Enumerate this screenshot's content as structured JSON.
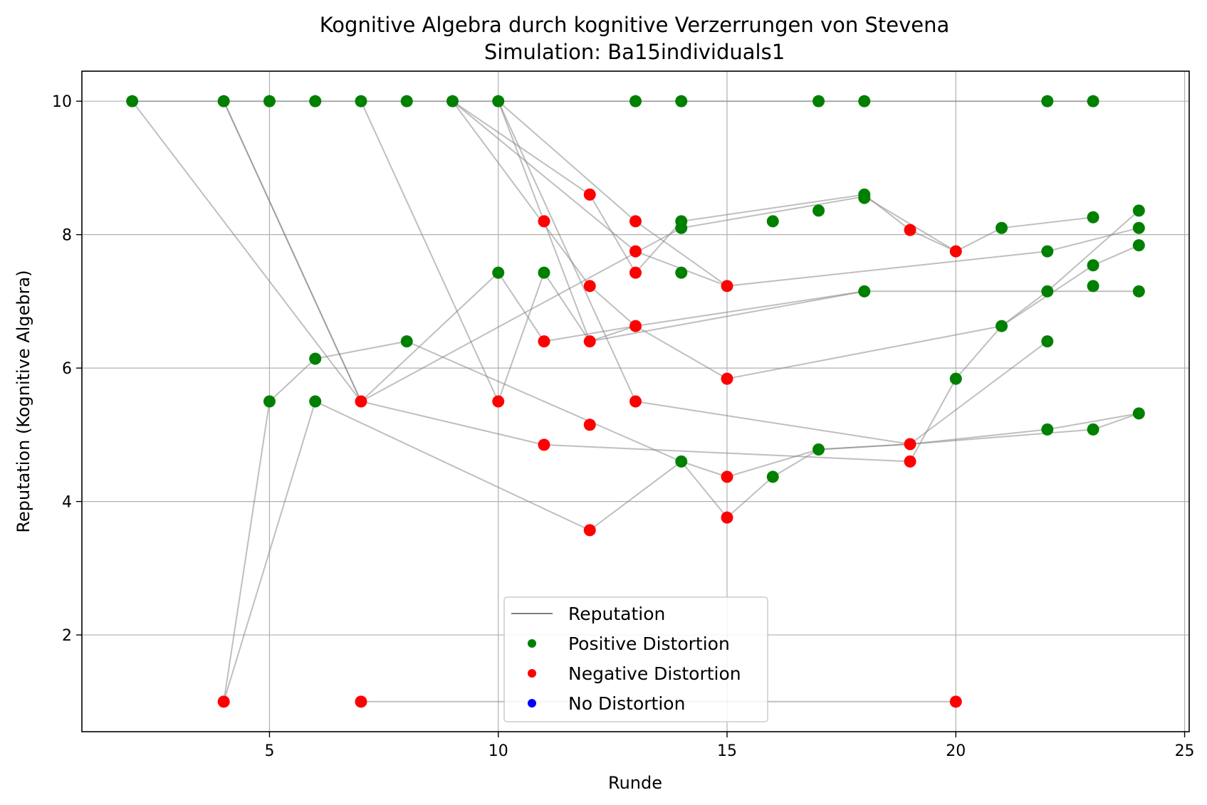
{
  "chart_data": {
    "type": "scatter",
    "title": "Kognitive Algebra durch kognitive Verzerrungen von Stevena",
    "subtitle": "Simulation: Ba15individuals1",
    "xlabel": "Runde",
    "ylabel": "Reputation (Kognitive Algebra)",
    "xlim": [
      0.9,
      25.1
    ],
    "ylim": [
      0.55,
      10.45
    ],
    "xticks": [
      5,
      10,
      15,
      20,
      25
    ],
    "yticks": [
      2,
      4,
      6,
      8,
      10
    ],
    "grid": true,
    "legend_position": "lower-center",
    "legend": [
      {
        "label": "Reputation",
        "kind": "line",
        "color": "#808080"
      },
      {
        "label": "Positive Distortion",
        "kind": "dot",
        "color": "#008000"
      },
      {
        "label": "Negative Distortion",
        "kind": "dot",
        "color": "#ff0000"
      },
      {
        "label": "No Distortion",
        "kind": "dot",
        "color": "#0000ff"
      }
    ],
    "colors": {
      "positive": "#008000",
      "negative": "#ff0000",
      "none": "#0000ff",
      "line": "#808080"
    },
    "series": [
      {
        "points": [
          [
            2,
            10
          ],
          [
            4,
            10
          ],
          [
            5,
            10
          ],
          [
            6,
            10
          ],
          [
            7,
            10
          ],
          [
            8,
            10
          ],
          [
            9,
            10
          ],
          [
            10,
            10
          ],
          [
            13,
            10
          ],
          [
            14,
            10
          ],
          [
            17,
            10
          ],
          [
            18,
            10
          ],
          [
            22,
            10
          ],
          [
            23,
            10
          ]
        ]
      },
      {
        "points": [
          [
            2,
            10
          ],
          [
            7,
            5.5
          ],
          [
            10,
            7.43
          ],
          [
            11,
            6.4
          ],
          [
            13,
            6.63
          ],
          [
            18,
            7.15
          ]
        ]
      },
      {
        "points": [
          [
            4,
            10
          ],
          [
            7,
            5.5
          ],
          [
            14,
            8.1
          ],
          [
            18,
            8.57
          ],
          [
            20,
            7.75
          ],
          [
            21,
            8.1
          ],
          [
            23,
            8.26
          ]
        ]
      },
      {
        "points": [
          [
            4,
            10
          ],
          [
            7,
            5.5
          ],
          [
            11,
            4.85
          ],
          [
            19,
            4.6
          ],
          [
            20,
            5.84
          ],
          [
            21,
            6.63
          ],
          [
            22,
            7.15
          ],
          [
            24,
            8.36
          ]
        ]
      },
      {
        "points": [
          [
            4,
            1
          ],
          [
            5,
            5.5
          ],
          [
            6,
            6.14
          ],
          [
            8,
            6.4
          ],
          [
            14,
            4.6
          ],
          [
            15,
            3.76
          ],
          [
            16,
            4.37
          ],
          [
            17,
            4.78
          ],
          [
            19,
            4.86
          ],
          [
            22,
            5.08
          ],
          [
            24,
            5.32
          ]
        ]
      },
      {
        "points": [
          [
            4,
            1
          ],
          [
            6,
            5.5
          ],
          [
            12,
            3.57
          ],
          [
            14,
            4.6
          ],
          [
            15,
            4.37
          ],
          [
            17,
            4.78
          ],
          [
            19,
            4.86
          ],
          [
            23,
            5.08
          ],
          [
            24,
            5.32
          ]
        ]
      },
      {
        "points": [
          [
            7,
            10
          ],
          [
            10,
            5.5
          ],
          [
            11,
            7.43
          ],
          [
            12,
            6.4
          ],
          [
            18,
            7.15
          ],
          [
            22,
            7.15
          ],
          [
            24,
            7.15
          ]
        ]
      },
      {
        "points": [
          [
            7,
            1
          ],
          [
            20,
            1
          ]
        ]
      },
      {
        "points": [
          [
            9,
            10
          ],
          [
            12,
            8.6
          ],
          [
            13,
            7.43
          ],
          [
            14,
            8.2
          ],
          [
            18,
            8.6
          ],
          [
            19,
            8.07
          ],
          [
            20,
            7.75
          ]
        ]
      },
      {
        "points": [
          [
            9,
            10
          ],
          [
            13,
            7.75
          ],
          [
            15,
            7.23
          ],
          [
            22,
            7.75
          ],
          [
            24,
            8.1
          ]
        ]
      },
      {
        "points": [
          [
            9,
            10
          ],
          [
            12,
            7.23
          ],
          [
            13,
            6.63
          ],
          [
            15,
            5.84
          ],
          [
            21,
            6.63
          ],
          [
            23,
            7.54
          ],
          [
            24,
            7.84
          ]
        ]
      },
      {
        "points": [
          [
            10,
            10
          ],
          [
            13,
            8.2
          ],
          [
            15,
            7.23
          ]
        ]
      },
      {
        "points": [
          [
            10,
            10
          ],
          [
            13,
            5.5
          ],
          [
            19,
            4.86
          ],
          [
            22,
            6.4
          ]
        ]
      },
      {
        "points": [
          [
            10,
            10
          ],
          [
            12,
            6.4
          ],
          [
            13,
            6.63
          ]
        ]
      }
    ],
    "scatter": {
      "positive": [
        [
          2,
          10
        ],
        [
          4,
          10
        ],
        [
          5,
          10
        ],
        [
          6,
          10
        ],
        [
          7,
          10
        ],
        [
          8,
          10
        ],
        [
          9,
          10
        ],
        [
          10,
          10
        ],
        [
          13,
          10
        ],
        [
          14,
          10
        ],
        [
          17,
          10
        ],
        [
          18,
          10
        ],
        [
          22,
          10
        ],
        [
          23,
          10
        ],
        [
          5,
          5.5
        ],
        [
          6,
          6.14
        ],
        [
          6,
          5.5
        ],
        [
          8,
          6.4
        ],
        [
          10,
          7.43
        ],
        [
          11,
          7.43
        ],
        [
          14,
          8.2
        ],
        [
          14,
          8.1
        ],
        [
          14,
          7.43
        ],
        [
          14,
          4.6
        ],
        [
          16,
          8.2
        ],
        [
          16,
          4.37
        ],
        [
          17,
          8.36
        ],
        [
          17,
          4.78
        ],
        [
          18,
          8.6
        ],
        [
          18,
          8.55
        ],
        [
          18,
          7.15
        ],
        [
          20,
          5.84
        ],
        [
          21,
          8.1
        ],
        [
          21,
          6.63
        ],
        [
          22,
          7.75
        ],
        [
          22,
          7.15
        ],
        [
          22,
          6.4
        ],
        [
          22,
          5.08
        ],
        [
          23,
          8.26
        ],
        [
          23,
          7.54
        ],
        [
          23,
          7.23
        ],
        [
          23,
          5.08
        ],
        [
          24,
          8.36
        ],
        [
          24,
          8.1
        ],
        [
          24,
          7.84
        ],
        [
          24,
          7.15
        ],
        [
          24,
          5.32
        ]
      ],
      "negative": [
        [
          4,
          1
        ],
        [
          7,
          1
        ],
        [
          20,
          1
        ],
        [
          7,
          5.5
        ],
        [
          10,
          5.5
        ],
        [
          11,
          8.2
        ],
        [
          11,
          6.4
        ],
        [
          11,
          4.85
        ],
        [
          12,
          8.6
        ],
        [
          12,
          7.23
        ],
        [
          12,
          6.4
        ],
        [
          12,
          5.15
        ],
        [
          12,
          3.57
        ],
        [
          13,
          8.2
        ],
        [
          13,
          7.75
        ],
        [
          13,
          7.43
        ],
        [
          13,
          6.63
        ],
        [
          13,
          5.5
        ],
        [
          15,
          7.23
        ],
        [
          15,
          5.84
        ],
        [
          15,
          4.37
        ],
        [
          15,
          3.76
        ],
        [
          19,
          8.07
        ],
        [
          19,
          4.86
        ],
        [
          19,
          4.6
        ],
        [
          20,
          7.75
        ]
      ],
      "none": []
    }
  }
}
